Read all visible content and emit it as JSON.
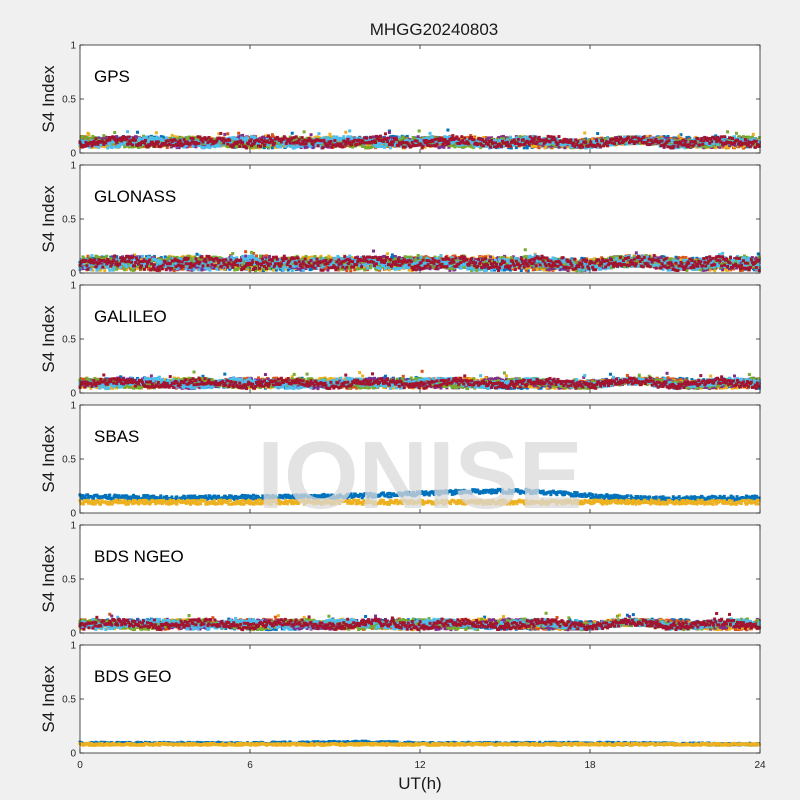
{
  "title": "MHGG20240803",
  "xlabel": "UT(h)",
  "watermark": "IONISE",
  "chart_data": [
    {
      "type": "scatter",
      "label": "GPS",
      "ylabel": "S4 Index",
      "ylim": [
        0,
        1
      ],
      "yticks": [
        "0",
        "0.5",
        "1"
      ],
      "xlim": [
        0,
        24
      ],
      "baseline": 0.1,
      "spread": 0.035,
      "series": [
        {
          "color": "#0072bd"
        },
        {
          "color": "#d95319"
        },
        {
          "color": "#edb120"
        },
        {
          "color": "#7e2f8e"
        },
        {
          "color": "#77ac30"
        },
        {
          "color": "#4dbeee"
        },
        {
          "color": "#a2142f"
        }
      ]
    },
    {
      "type": "scatter",
      "label": "GLONASS",
      "ylabel": "S4 Index",
      "ylim": [
        0,
        1
      ],
      "yticks": [
        "0",
        "0.5",
        "1"
      ],
      "xlim": [
        0,
        24
      ],
      "baseline": 0.09,
      "spread": 0.05,
      "series": [
        {
          "color": "#0072bd"
        },
        {
          "color": "#d95319"
        },
        {
          "color": "#edb120"
        },
        {
          "color": "#7e2f8e"
        },
        {
          "color": "#77ac30"
        },
        {
          "color": "#4dbeee"
        },
        {
          "color": "#a2142f"
        }
      ]
    },
    {
      "type": "scatter",
      "label": "GALILEO",
      "ylabel": "S4 Index",
      "ylim": [
        0,
        1
      ],
      "yticks": [
        "0",
        "0.5",
        "1"
      ],
      "xlim": [
        0,
        24
      ],
      "baseline": 0.09,
      "spread": 0.03,
      "series": [
        {
          "color": "#0072bd"
        },
        {
          "color": "#d95319"
        },
        {
          "color": "#edb120"
        },
        {
          "color": "#7e2f8e"
        },
        {
          "color": "#77ac30"
        },
        {
          "color": "#4dbeee"
        },
        {
          "color": "#a2142f"
        }
      ]
    },
    {
      "type": "scatter",
      "label": "SBAS",
      "ylabel": "S4 Index",
      "ylim": [
        0,
        1
      ],
      "yticks": [
        "0",
        "0.5",
        "1"
      ],
      "xlim": [
        0,
        24
      ],
      "baseline": 0.12,
      "spread": 0.02,
      "series": [
        {
          "color": "#0072bd",
          "values": [
            [
              0,
              0.15
            ],
            [
              4,
              0.14
            ],
            [
              8,
              0.15
            ],
            [
              10,
              0.16
            ],
            [
              12,
              0.18
            ],
            [
              14,
              0.2
            ],
            [
              16,
              0.2
            ],
            [
              18,
              0.16
            ],
            [
              20,
              0.13
            ],
            [
              24,
              0.14
            ]
          ]
        },
        {
          "color": "#edb120",
          "values": [
            [
              0,
              0.1
            ],
            [
              4,
              0.1
            ],
            [
              8,
              0.1
            ],
            [
              12,
              0.1
            ],
            [
              16,
              0.1
            ],
            [
              20,
              0.1
            ],
            [
              24,
              0.1
            ]
          ]
        }
      ]
    },
    {
      "type": "scatter",
      "label": "BDS NGEO",
      "ylabel": "S4 Index",
      "ylim": [
        0,
        1
      ],
      "yticks": [
        "0",
        "0.5",
        "1"
      ],
      "xlim": [
        0,
        24
      ],
      "baseline": 0.08,
      "spread": 0.03,
      "series": [
        {
          "color": "#0072bd"
        },
        {
          "color": "#d95319"
        },
        {
          "color": "#edb120"
        },
        {
          "color": "#7e2f8e"
        },
        {
          "color": "#77ac30"
        },
        {
          "color": "#4dbeee"
        },
        {
          "color": "#a2142f"
        }
      ]
    },
    {
      "type": "scatter",
      "label": "BDS GEO",
      "ylabel": "S4 Index",
      "ylim": [
        0,
        1
      ],
      "yticks": [
        "0",
        "0.5",
        "1"
      ],
      "xlim": [
        0,
        24
      ],
      "xticks": [
        "0",
        "6",
        "12",
        "18",
        "24"
      ],
      "baseline": 0.08,
      "spread": 0.01,
      "series": [
        {
          "color": "#0072bd",
          "values": [
            [
              0,
              0.09
            ],
            [
              6,
              0.09
            ],
            [
              10,
              0.1
            ],
            [
              12,
              0.09
            ],
            [
              18,
              0.09
            ],
            [
              24,
              0.08
            ]
          ]
        },
        {
          "color": "#edb120",
          "values": [
            [
              0,
              0.08
            ],
            [
              6,
              0.08
            ],
            [
              12,
              0.08
            ],
            [
              18,
              0.08
            ],
            [
              24,
              0.08
            ]
          ]
        }
      ]
    }
  ]
}
